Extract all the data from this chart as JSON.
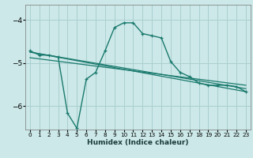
{
  "xlabel": "Humidex (Indice chaleur)",
  "bg_color": "#cce8e8",
  "grid_color": "#aacfcf",
  "line_color": "#1a7a6e",
  "xlim": [
    -0.5,
    23.5
  ],
  "ylim": [
    -6.55,
    -3.65
  ],
  "yticks": [
    -6,
    -5,
    -4
  ],
  "xticks": [
    0,
    1,
    2,
    3,
    4,
    5,
    6,
    7,
    8,
    9,
    10,
    11,
    12,
    13,
    14,
    15,
    16,
    17,
    18,
    19,
    20,
    21,
    22,
    23
  ],
  "main_series_x": [
    0,
    1,
    2,
    3,
    4,
    5,
    6,
    7,
    8,
    9,
    10,
    11,
    12,
    13,
    14,
    15,
    16,
    17,
    18,
    19,
    20,
    21,
    22,
    23
  ],
  "main_series_y": [
    -4.72,
    -4.82,
    -4.82,
    -4.87,
    -6.17,
    -6.52,
    -5.38,
    -5.22,
    -4.72,
    -4.18,
    -4.07,
    -4.07,
    -4.32,
    -4.37,
    -4.42,
    -4.97,
    -5.22,
    -5.32,
    -5.47,
    -5.52,
    -5.52,
    -5.52,
    -5.55,
    -5.67
  ],
  "line2_x": [
    0,
    23
  ],
  "line2_y": [
    -4.75,
    -5.67
  ],
  "line3_x": [
    0,
    23
  ],
  "line3_y": [
    -4.88,
    -5.52
  ],
  "line4_x": [
    0,
    23
  ],
  "line4_y": [
    -4.75,
    -5.6
  ]
}
